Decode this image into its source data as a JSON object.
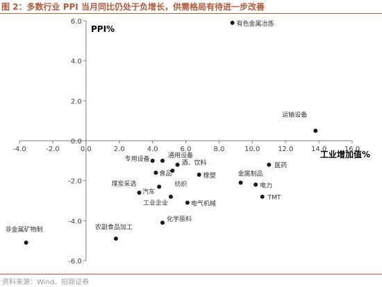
{
  "caption": "图 2：多数行业 PPI 当月同比仍处于负增长，供需格局有待进一步改善",
  "source": "资料来源：Wind、招商证券",
  "colors": {
    "accent": "#b15a3b",
    "marker": "#1a1a1a",
    "axis": "#7f7f7f",
    "tick_text": "#404040",
    "label_text": "#333333"
  },
  "chart_data": {
    "type": "scatter",
    "title": "",
    "xlabel": "工业增加值%",
    "ylabel": "PPI%",
    "xlim": [
      -4.0,
      16.0
    ],
    "ylim": [
      -6.0,
      6.0
    ],
    "x_ticks": [
      "-4.0",
      "-2.0",
      "0.0",
      "2.0",
      "4.0",
      "6.0",
      "8.0",
      "10.0",
      "12.0",
      "14.0",
      "16.0"
    ],
    "y_ticks": [
      "-6.0",
      "-4.0",
      "-2.0",
      "0.0",
      "2.0",
      "4.0",
      "6.0"
    ],
    "grid": false,
    "legend": "none",
    "points": [
      {
        "label": "有色金属冶炼",
        "x": 8.8,
        "y": 5.9
      },
      {
        "label": "运输设备",
        "x": 13.8,
        "y": 0.5
      },
      {
        "label": "医药",
        "x": 11.0,
        "y": -1.2
      },
      {
        "label": "专用设备",
        "x": 4.0,
        "y": -1.0
      },
      {
        "label": "通用设备",
        "x": 4.6,
        "y": -1.0
      },
      {
        "label": "酒、饮料",
        "x": 5.5,
        "y": -1.2
      },
      {
        "label": "食品",
        "x": 4.2,
        "y": -1.6
      },
      {
        "label": "橡塑",
        "x": 6.8,
        "y": -1.7
      },
      {
        "label": "纺织",
        "x": 5.2,
        "y": -1.5
      },
      {
        "label": "金属制品",
        "x": 9.3,
        "y": -2.1
      },
      {
        "label": "电力",
        "x": 10.2,
        "y": -2.2
      },
      {
        "label": "煤炭采选",
        "x": 3.2,
        "y": -2.6
      },
      {
        "label": "汽车",
        "x": 4.4,
        "y": -2.3
      },
      {
        "label": "TMT",
        "x": 10.6,
        "y": -2.8
      },
      {
        "label": "工业企业",
        "x": 5.1,
        "y": -2.8
      },
      {
        "label": "电气机械",
        "x": 6.1,
        "y": -3.1
      },
      {
        "label": "化学原料",
        "x": 4.6,
        "y": -4.1
      },
      {
        "label": "农副食品加工",
        "x": 1.8,
        "y": -4.9
      },
      {
        "label": "非金属矿物制",
        "x": -3.6,
        "y": -5.1
      }
    ]
  }
}
